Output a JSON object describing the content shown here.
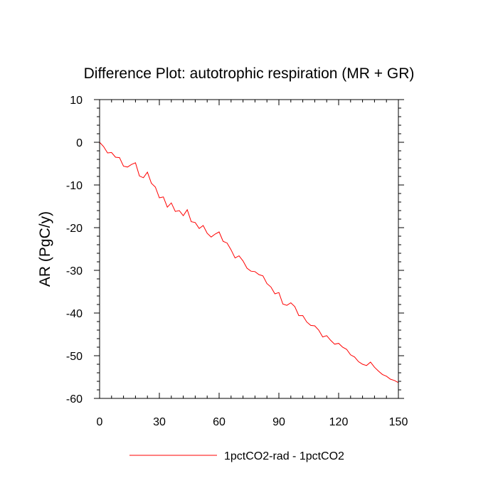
{
  "chart_data": {
    "type": "line",
    "title": "Difference Plot: autotrophic respiration (MR + GR)",
    "ylabel": "AR  (PgC/y)",
    "xlim": [
      0,
      150
    ],
    "ylim": [
      -60,
      10
    ],
    "xticks": [
      0,
      30,
      60,
      90,
      120,
      150
    ],
    "yticks": [
      10,
      0,
      -10,
      -20,
      -30,
      -40,
      -50,
      -60
    ],
    "grid": false,
    "legend_position": "bottom",
    "series": [
      {
        "name": "1pctCO2-rad - 1pctCO2",
        "color": "#ff0000",
        "x": [
          0,
          2,
          4,
          6,
          8,
          10,
          12,
          14,
          16,
          18,
          20,
          22,
          24,
          26,
          28,
          30,
          32,
          34,
          36,
          38,
          40,
          42,
          44,
          46,
          48,
          50,
          52,
          54,
          56,
          58,
          60,
          62,
          64,
          66,
          68,
          70,
          72,
          74,
          76,
          78,
          80,
          82,
          84,
          86,
          88,
          90,
          92,
          94,
          96,
          98,
          100,
          102,
          104,
          106,
          108,
          110,
          112,
          114,
          116,
          118,
          120,
          122,
          124,
          126,
          128,
          130,
          132,
          134,
          136,
          138,
          140,
          142,
          144,
          146,
          148,
          150
        ],
        "y": [
          0,
          -1,
          -2.5,
          -2.4,
          -3.5,
          -3.6,
          -5.6,
          -5.8,
          -5.2,
          -4.8,
          -7.9,
          -8.3,
          -7,
          -9.6,
          -10.5,
          -13,
          -12.8,
          -15.2,
          -14.2,
          -16.2,
          -16,
          -17.2,
          -15.8,
          -18.6,
          -18.8,
          -20.2,
          -19.5,
          -21.3,
          -22.2,
          -21.5,
          -21,
          -23.2,
          -23.6,
          -25.2,
          -27.1,
          -26.6,
          -27.8,
          -29.5,
          -30.2,
          -30.3,
          -31,
          -31.3,
          -33.1,
          -33.9,
          -35.5,
          -35.2,
          -37.9,
          -38.2,
          -37.6,
          -38.5,
          -40.6,
          -40.6,
          -42.1,
          -42.9,
          -43,
          -44,
          -45.6,
          -45.3,
          -46.4,
          -47.3,
          -47.1,
          -48,
          -48.5,
          -49.8,
          -50.3,
          -51.4,
          -52,
          -52.3,
          -51.5,
          -52.7,
          -53.6,
          -54.4,
          -54.8,
          -55.5,
          -55.8,
          -56.3
        ]
      }
    ]
  }
}
